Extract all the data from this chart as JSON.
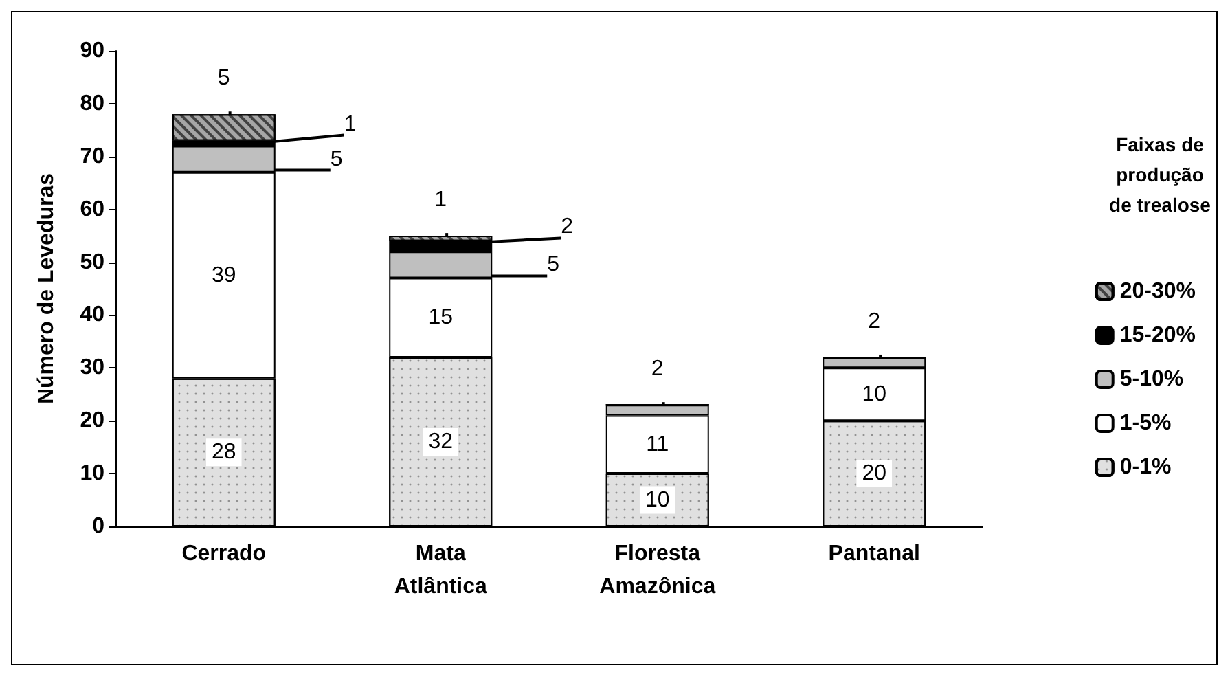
{
  "chart_data": {
    "type": "bar",
    "stacked": true,
    "ylabel": "Número de Leveduras",
    "legend_title": "Faixas de produção de trealose",
    "legend": "right",
    "grid": false,
    "categories": [
      "Cerrado",
      "Mata\nAtlântica",
      "Floresta\nAmazônica",
      "Pantanal"
    ],
    "ylim": [
      0,
      90
    ],
    "yticks": [
      0,
      10,
      20,
      30,
      40,
      50,
      60,
      70,
      80,
      90
    ],
    "series": [
      {
        "name": "0-1%",
        "color": "#e0e0e0",
        "values": [
          28,
          32,
          10,
          20
        ],
        "value_labels": [
          "28",
          "32",
          "10",
          "20"
        ]
      },
      {
        "name": "1-5%",
        "color": "#ffffff",
        "values": [
          39,
          15,
          11,
          10
        ],
        "value_labels": [
          "39",
          "15",
          "11",
          "10"
        ]
      },
      {
        "name": "5-10%",
        "color": "#bfbfbf",
        "values": [
          5,
          5,
          2,
          2
        ],
        "value_labels": [
          "5",
          "5",
          "2",
          "2"
        ]
      },
      {
        "name": "15-20%",
        "color": "#000000",
        "values": [
          1,
          2,
          0,
          0
        ],
        "value_labels": [
          "1",
          "2",
          null,
          null
        ]
      },
      {
        "name": "20-30%",
        "color": "#a6a6a6",
        "values": [
          5,
          1,
          0,
          0
        ],
        "value_labels": [
          "5",
          "1",
          null,
          null
        ]
      }
    ]
  }
}
